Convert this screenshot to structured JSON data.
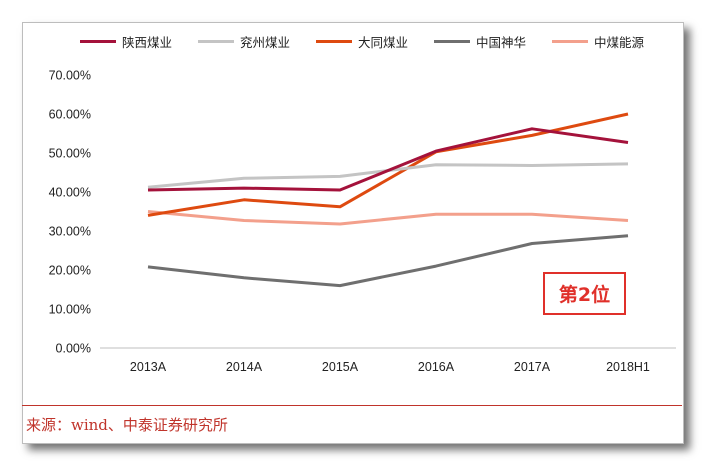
{
  "colors": {
    "shaanxi": "#a4123b",
    "yanzhou": "#c4c4c4",
    "datong": "#de4a10",
    "shenhua": "#6f6f6f",
    "chinacoal": "#f3a08c",
    "accent": "#e0302a",
    "source": "#c0342b"
  },
  "badge": {
    "text": "第2位"
  },
  "source": {
    "text": "来源：wind、中泰证券研究所"
  },
  "chart_data": {
    "type": "line",
    "categories": [
      "2013A",
      "2014A",
      "2015A",
      "2016A",
      "2017A",
      "2018H1"
    ],
    "ylim": [
      0,
      70
    ],
    "ytick_values": [
      0,
      10,
      20,
      30,
      40,
      50,
      60,
      70
    ],
    "ytick_labels": [
      "0.00%",
      "10.00%",
      "20.00%",
      "30.00%",
      "40.00%",
      "50.00%",
      "60.00%",
      "70.00%"
    ],
    "legend_position": "top",
    "grid": false,
    "series": [
      {
        "name": "陕西煤业",
        "color_key": "shaanxi",
        "values": [
          40.5,
          41.0,
          40.5,
          50.5,
          56.2,
          52.7
        ]
      },
      {
        "name": "兖州煤业",
        "color_key": "yanzhou",
        "values": [
          41.2,
          43.5,
          44.0,
          47.0,
          46.8,
          47.2
        ]
      },
      {
        "name": "大同煤业",
        "color_key": "datong",
        "values": [
          34.0,
          38.0,
          36.2,
          50.3,
          54.5,
          60.0
        ]
      },
      {
        "name": "中国神华",
        "color_key": "shenhua",
        "values": [
          20.8,
          18.0,
          16.0,
          21.0,
          26.8,
          28.8
        ]
      },
      {
        "name": "中煤能源",
        "color_key": "chinacoal",
        "values": [
          35.0,
          32.7,
          31.8,
          34.3,
          34.3,
          32.7
        ]
      }
    ]
  }
}
